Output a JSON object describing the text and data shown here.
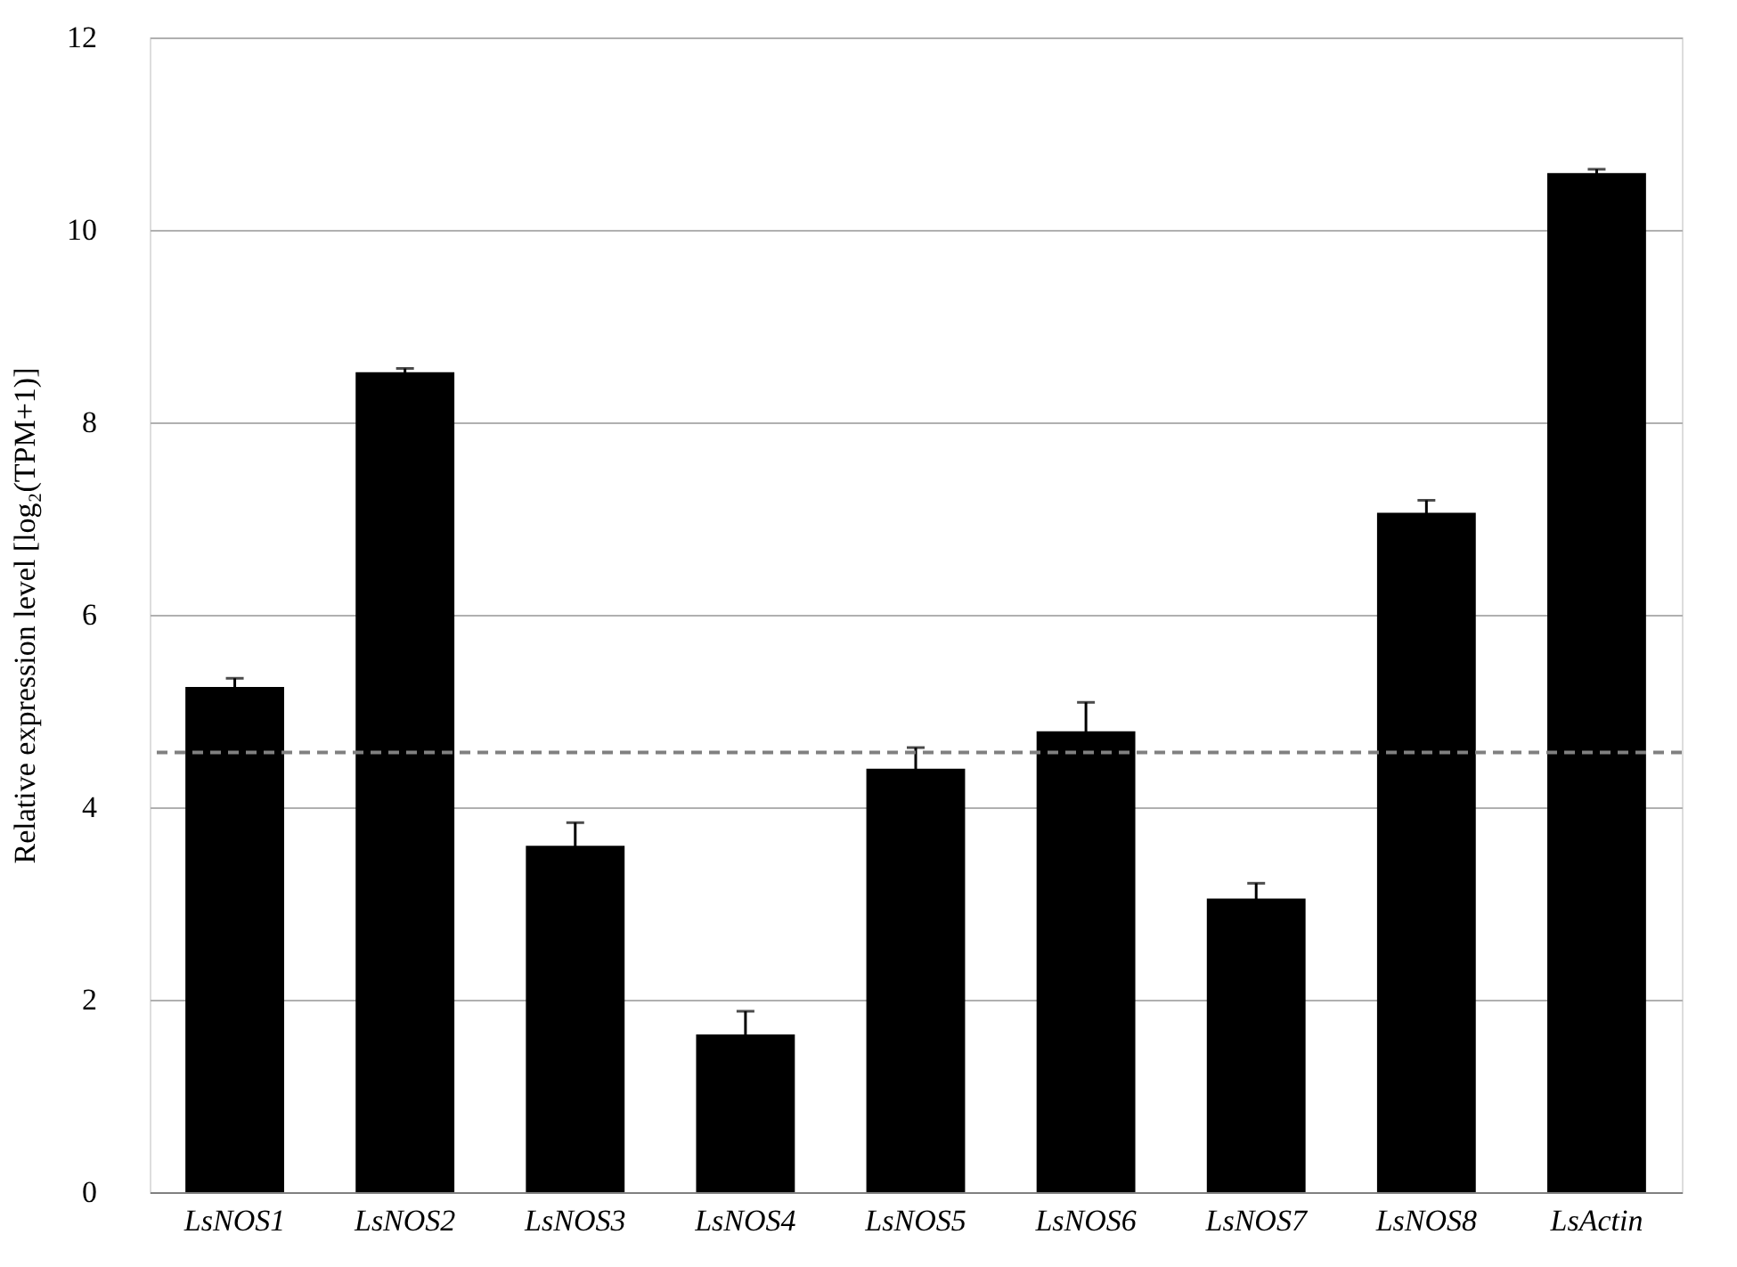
{
  "chart_data": {
    "type": "bar",
    "ylabel": "Relative expression level  [log₂(TPM+1)]",
    "categories": [
      "LsNOS1",
      "LsNOS2",
      "LsNOS3",
      "LsNOS4",
      "LsNOS5",
      "LsNOS6",
      "LsNOS7",
      "LsNOS8",
      "LsActin"
    ],
    "values": [
      5.25,
      8.52,
      3.6,
      1.64,
      4.4,
      4.79,
      3.05,
      7.06,
      10.59
    ],
    "errors": [
      0.09,
      0.04,
      0.24,
      0.24,
      0.22,
      0.3,
      0.16,
      0.13,
      0.04
    ],
    "color": "#000000",
    "ylim": [
      0,
      12
    ],
    "yticks": [
      0,
      2,
      4,
      6,
      8,
      10,
      12
    ],
    "grid": "y",
    "ref_lines": [
      {
        "axis": "y",
        "value": 4.57,
        "color": "#808080",
        "line_style": "dashed"
      }
    ]
  }
}
